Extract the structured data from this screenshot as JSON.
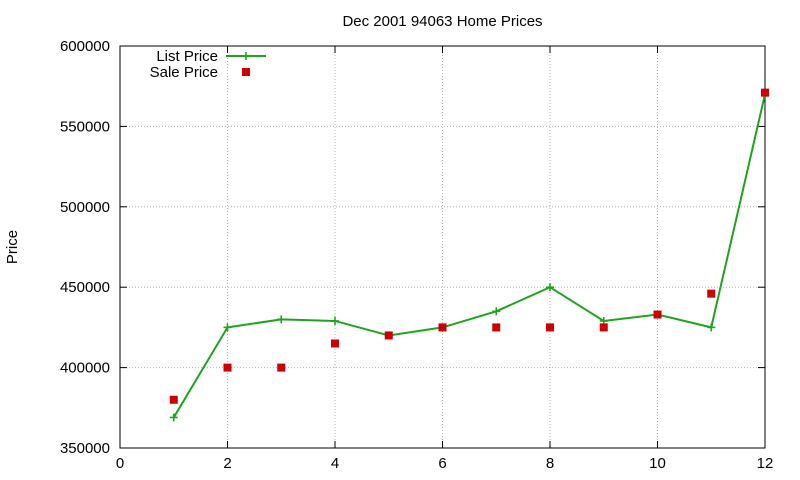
{
  "chart_data": {
    "type": "line",
    "title": "Dec 2001 94063 Home Prices",
    "xlabel": "",
    "ylabel": "Price",
    "xlim": [
      0,
      12
    ],
    "ylim": [
      350000,
      600000
    ],
    "x_ticks": [
      0,
      2,
      4,
      6,
      8,
      10,
      12
    ],
    "y_ticks": [
      350000,
      400000,
      450000,
      500000,
      550000,
      600000
    ],
    "grid": true,
    "legend_position": "top-left",
    "series": [
      {
        "name": "List Price",
        "style": "line-with-plus-markers",
        "color": "#1fa31f",
        "x": [
          1,
          2,
          3,
          4,
          5,
          6,
          7,
          8,
          9,
          10,
          11,
          12
        ],
        "y": [
          369000,
          425000,
          430000,
          429000,
          420000,
          425000,
          435000,
          450000,
          429000,
          433000,
          425000,
          570000
        ]
      },
      {
        "name": "Sale Price",
        "style": "square-markers",
        "color": "#cc0000",
        "x": [
          1,
          2,
          3,
          4,
          5,
          6,
          7,
          8,
          9,
          10,
          11,
          12
        ],
        "y": [
          380000,
          400000,
          400000,
          415000,
          420000,
          425000,
          425000,
          425000,
          425000,
          433000,
          446000,
          571000
        ]
      }
    ]
  }
}
